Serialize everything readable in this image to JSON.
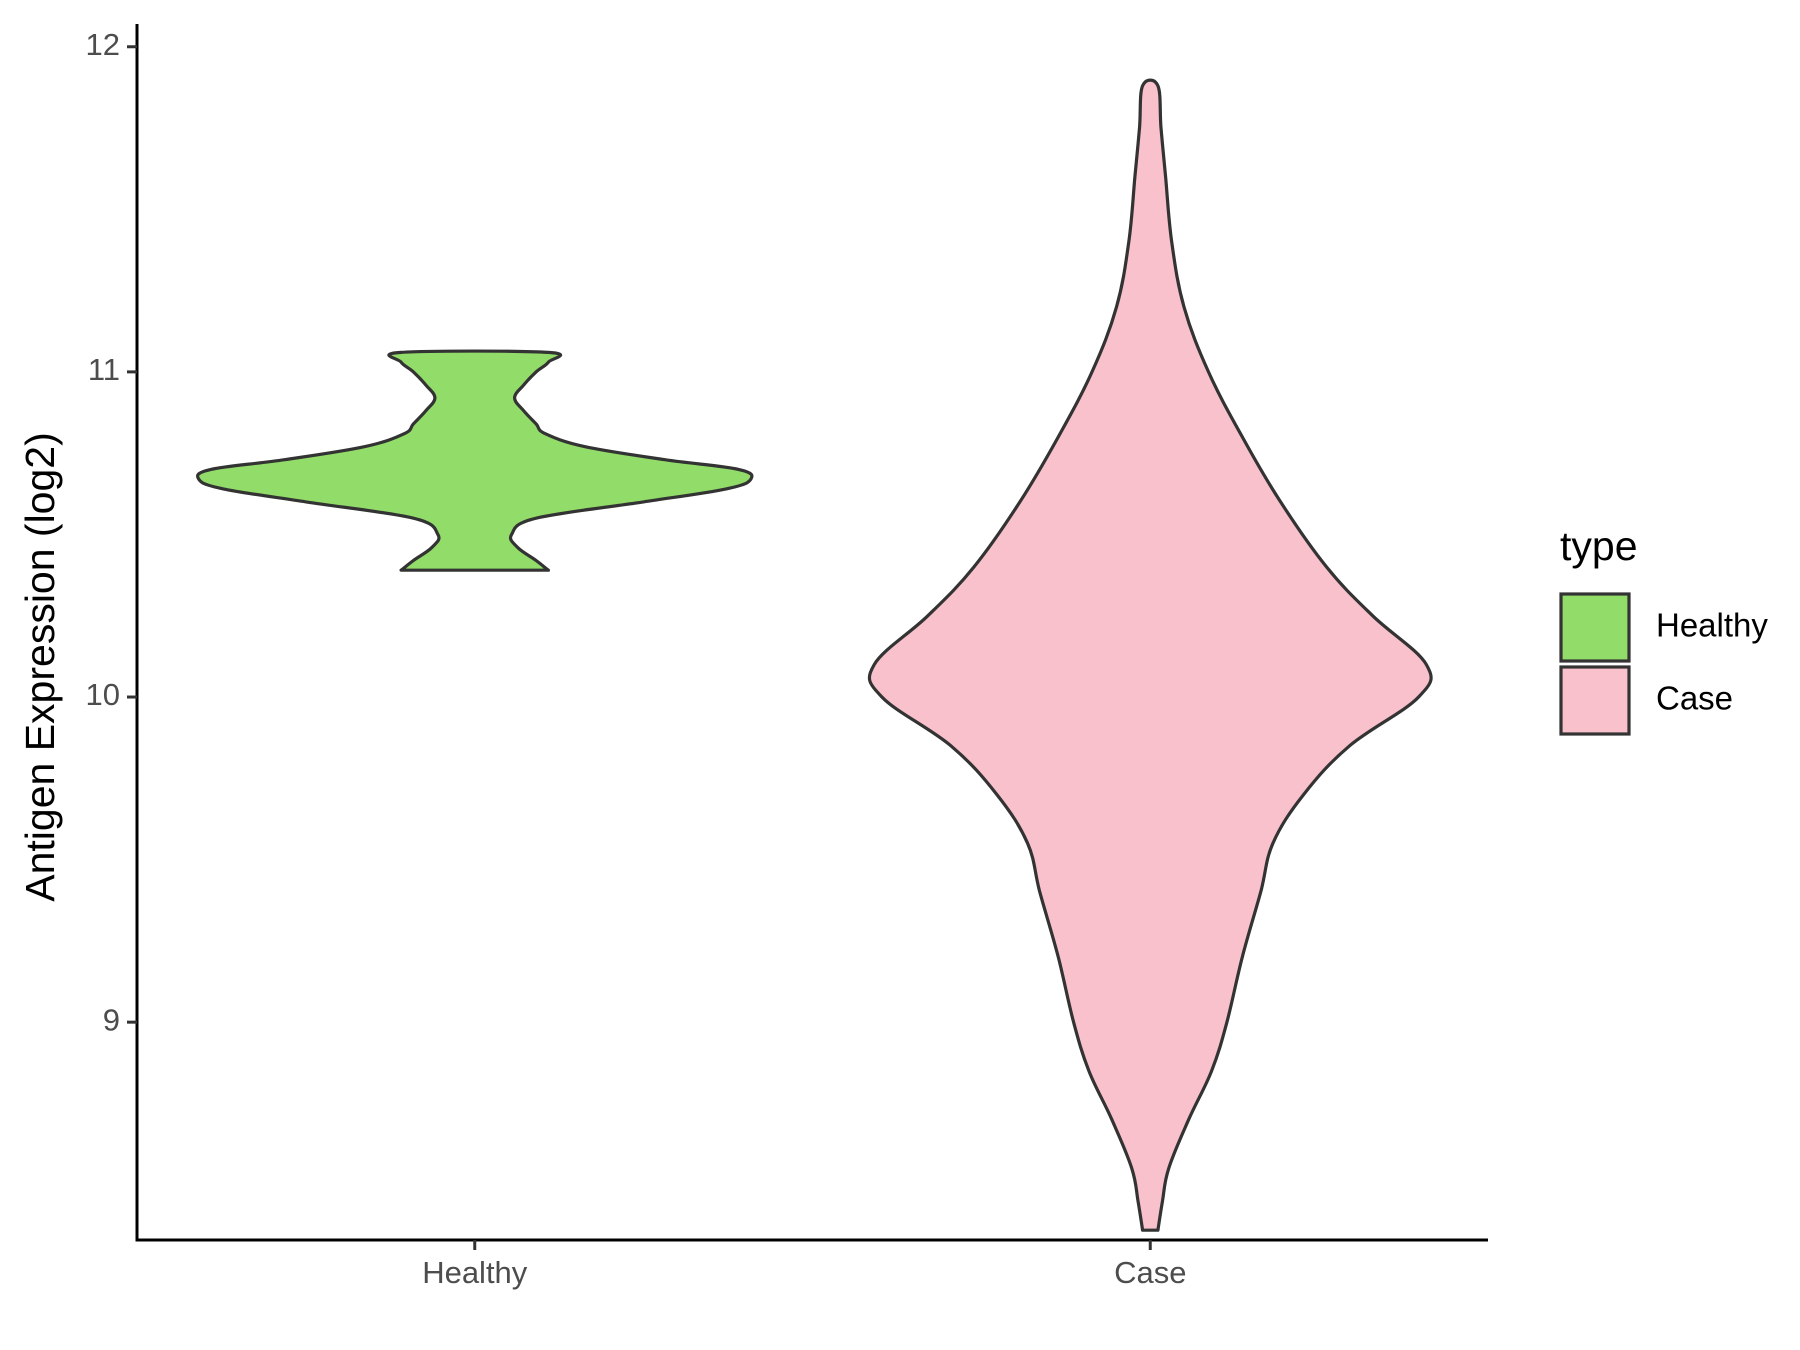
{
  "chart_data": {
    "type": "violin",
    "title": "",
    "xlabel": "",
    "ylabel": "Antigen Expression (log2)",
    "ylim": [
      8.33,
      12.07
    ],
    "y_ticks": [
      "9",
      "10",
      "11",
      "12"
    ],
    "categories": [
      "Healthy",
      "Case"
    ],
    "legend": {
      "title": "type",
      "placement": "right",
      "entries": [
        "Healthy",
        "Case"
      ]
    },
    "series": [
      {
        "name": "Healthy",
        "color": "#92dc6a",
        "min": 10.39,
        "max": 11.06,
        "density": [
          [
            10.39,
            0.24
          ],
          [
            10.42,
            0.2
          ],
          [
            10.46,
            0.14
          ],
          [
            10.5,
            0.12
          ],
          [
            10.55,
            0.2
          ],
          [
            10.6,
            0.55
          ],
          [
            10.64,
            0.82
          ],
          [
            10.67,
            0.9
          ],
          [
            10.7,
            0.86
          ],
          [
            10.73,
            0.62
          ],
          [
            10.77,
            0.36
          ],
          [
            10.81,
            0.23
          ],
          [
            10.84,
            0.2
          ],
          [
            10.88,
            0.16
          ],
          [
            10.92,
            0.13
          ],
          [
            10.96,
            0.16
          ],
          [
            11.0,
            0.2
          ],
          [
            11.03,
            0.24
          ],
          [
            11.06,
            0.24
          ]
        ]
      },
      {
        "name": "Case",
        "color": "#f8c1cc",
        "min": 8.36,
        "max": 11.88,
        "density": [
          [
            8.36,
            0.005
          ],
          [
            8.45,
            0.008
          ],
          [
            8.55,
            0.012
          ],
          [
            8.7,
            0.025
          ],
          [
            8.85,
            0.04
          ],
          [
            9.0,
            0.05
          ],
          [
            9.2,
            0.06
          ],
          [
            9.4,
            0.072
          ],
          [
            9.55,
            0.08
          ],
          [
            9.7,
            0.1
          ],
          [
            9.85,
            0.13
          ],
          [
            10.0,
            0.175
          ],
          [
            10.1,
            0.18
          ],
          [
            10.25,
            0.145
          ],
          [
            10.4,
            0.115
          ],
          [
            10.6,
            0.085
          ],
          [
            10.8,
            0.06
          ],
          [
            11.0,
            0.038
          ],
          [
            11.2,
            0.022
          ],
          [
            11.4,
            0.014
          ],
          [
            11.6,
            0.01
          ],
          [
            11.75,
            0.007
          ],
          [
            11.88,
            0.005
          ]
        ]
      }
    ]
  }
}
